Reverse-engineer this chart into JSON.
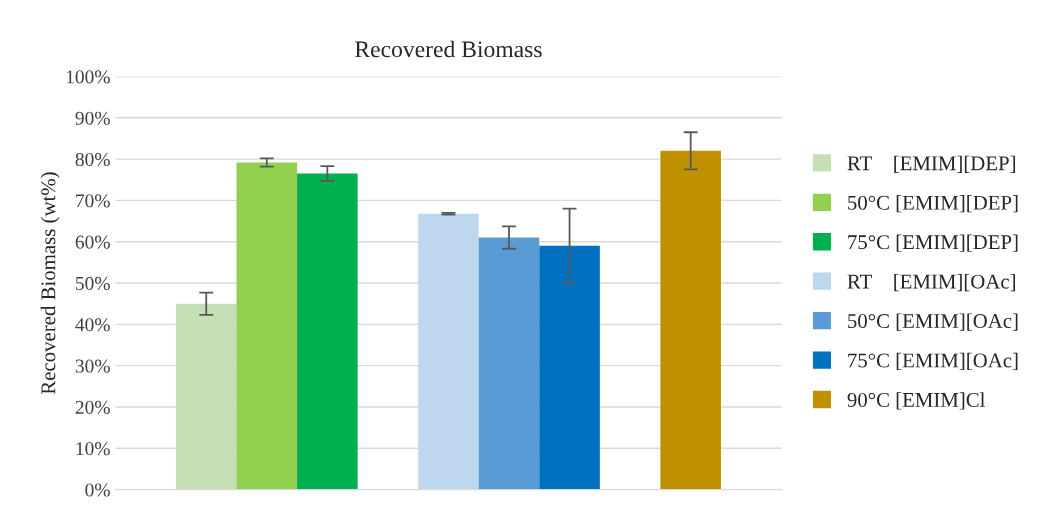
{
  "chart_data": {
    "type": "bar",
    "title": "Recovered Biomass",
    "ylabel": "Recovered Biomass (wt%)",
    "categories": [
      null,
      null,
      null,
      null,
      null,
      null,
      null,
      null,
      null,
      null,
      null
    ],
    "stacked": true,
    "series": [
      {
        "name": "RT    [EMIM][DEP]",
        "color": "#c5e0b4",
        "values": [
          null,
          45,
          null,
          null,
          null,
          null,
          null,
          null,
          null,
          null,
          null
        ],
        "errors": [
          null,
          2.7,
          null,
          null,
          null,
          null,
          null,
          null,
          null,
          null,
          null
        ]
      },
      {
        "name": "50°C [EMIM][DEP]",
        "color": "#92d050",
        "values": [
          null,
          null,
          79.2,
          null,
          null,
          null,
          null,
          null,
          null,
          null,
          null
        ],
        "errors": [
          null,
          null,
          1,
          null,
          null,
          null,
          null,
          null,
          null,
          null,
          null
        ]
      },
      {
        "name": "75°C [EMIM][DEP]",
        "color": "#00b050",
        "values": [
          null,
          null,
          null,
          76.5,
          null,
          null,
          null,
          null,
          null,
          null,
          null
        ],
        "errors": [
          null,
          null,
          null,
          1.8,
          null,
          null,
          null,
          null,
          null,
          null,
          null
        ]
      },
      {
        "name": "RT    [EMIM][OAc]",
        "color": "#bdd7ee",
        "values": [
          null,
          null,
          null,
          null,
          null,
          66.8,
          null,
          null,
          null,
          null,
          null
        ],
        "errors": [
          null,
          null,
          null,
          null,
          null,
          0.2,
          null,
          null,
          null,
          null,
          null
        ]
      },
      {
        "name": "50°C [EMIM][OAc]",
        "color": "#5b9bd5",
        "values": [
          null,
          null,
          null,
          null,
          null,
          null,
          61,
          null,
          null,
          null,
          null
        ],
        "errors": [
          null,
          null,
          null,
          null,
          null,
          null,
          2.7,
          null,
          null,
          null,
          null
        ]
      },
      {
        "name": "75°C [EMIM][OAc]",
        "color": "#0070c0",
        "values": [
          null,
          null,
          null,
          null,
          null,
          null,
          null,
          59,
          null,
          null,
          null
        ],
        "errors": [
          null,
          null,
          null,
          null,
          null,
          null,
          null,
          9,
          null,
          null,
          null
        ]
      },
      {
        "name": "90°C [EMIM]Cl",
        "color": "#bf9000",
        "values": [
          null,
          null,
          null,
          null,
          null,
          null,
          null,
          null,
          null,
          82,
          null
        ],
        "errors": [
          null,
          null,
          null,
          null,
          null,
          null,
          null,
          null,
          null,
          4.5,
          null
        ]
      }
    ],
    "ylim": [
      0,
      100
    ],
    "yticks": [
      {
        "value": 0,
        "label": "0%"
      },
      {
        "value": 10,
        "label": "10%"
      },
      {
        "value": 20,
        "label": "20%"
      },
      {
        "value": 30,
        "label": "30%"
      },
      {
        "value": 40,
        "label": "40%"
      },
      {
        "value": 50,
        "label": "50%"
      },
      {
        "value": 60,
        "label": "60%"
      },
      {
        "value": 70,
        "label": "70%"
      },
      {
        "value": 80,
        "label": "80%"
      },
      {
        "value": 90,
        "label": "90%"
      },
      {
        "value": 100,
        "label": "100%"
      }
    ],
    "grid": "y",
    "legend": "right"
  }
}
